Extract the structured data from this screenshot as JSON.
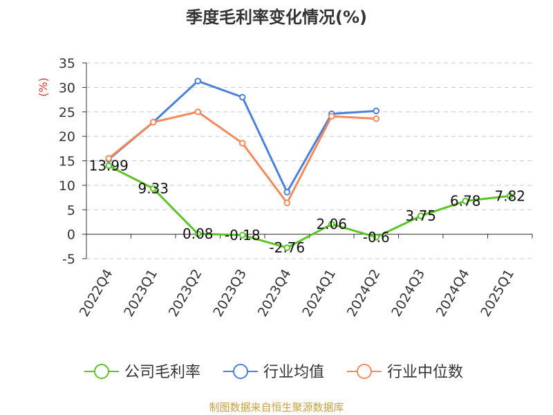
{
  "chart_data": {
    "type": "line",
    "title": "季度毛利率变化情况(%)",
    "ylabel": "(%)",
    "xlabel": "",
    "categories": [
      "2022Q4",
      "2023Q1",
      "2023Q2",
      "2023Q3",
      "2023Q4",
      "2024Q1",
      "2024Q2",
      "2024Q3",
      "2024Q4",
      "2025Q1"
    ],
    "ylim": [
      -5,
      35
    ],
    "yticks": [
      -5,
      0,
      5,
      10,
      15,
      20,
      25,
      30,
      35
    ],
    "grid": true,
    "legend_position": "bottom",
    "series": [
      {
        "name": "公司毛利率",
        "color": "#5cc426",
        "values": [
          13.99,
          9.33,
          0.08,
          -0.18,
          -2.76,
          2.06,
          -0.6,
          3.75,
          6.78,
          7.82
        ],
        "labels": [
          "13.99",
          "9.33",
          "0.08",
          "-0.18",
          "-2.76",
          "2.06",
          "-0.6",
          "3.75",
          "6.78",
          "7.82"
        ]
      },
      {
        "name": "行业均值",
        "color": "#4b7fdc",
        "values": [
          15.3,
          22.9,
          31.3,
          28.0,
          8.6,
          24.6,
          25.2,
          null,
          null,
          null
        ]
      },
      {
        "name": "行业中位数",
        "color": "#f28a5c",
        "values": [
          15.5,
          22.9,
          25.0,
          18.6,
          6.4,
          24.1,
          23.6,
          null,
          null,
          null
        ]
      }
    ]
  },
  "colors": {
    "axis": "#333333",
    "grid": "#c8c8c8",
    "unit_label": "#e03030",
    "source": "#c8a040"
  },
  "source_text": "制图数据来自恒生聚源数据库"
}
